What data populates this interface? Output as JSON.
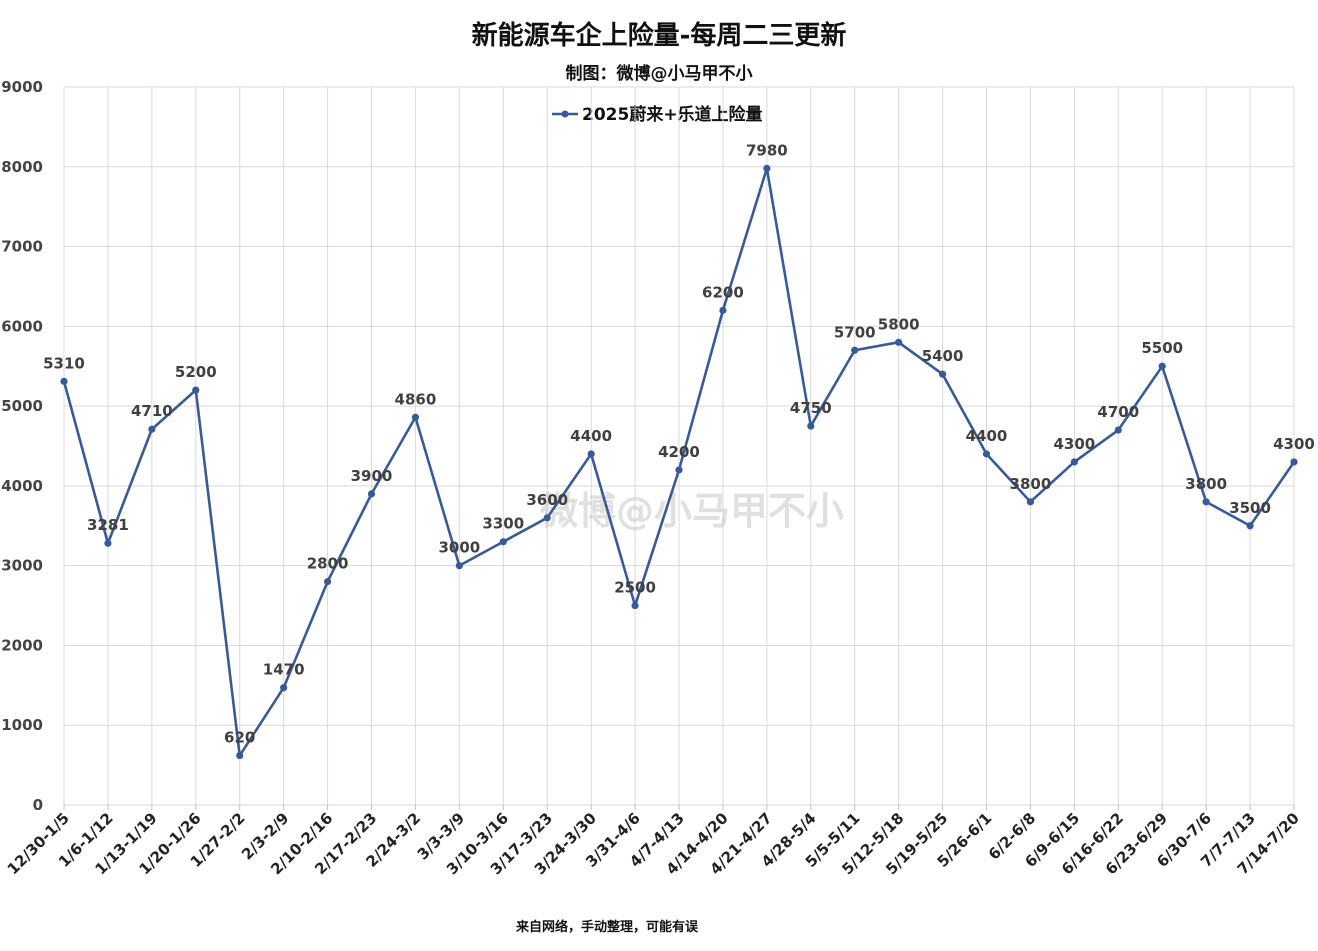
{
  "chart_data": {
    "type": "line",
    "title": "新能源车企上险量-每周二三更新",
    "subtitle": "制图：微博@小马甲不小",
    "footer": "来自网络，手动整理，可能有误",
    "watermark": "微博@小马甲不小",
    "legend_position": "top-center",
    "grid": true,
    "ylim": [
      0,
      9000
    ],
    "yticks": [
      0,
      1000,
      2000,
      3000,
      4000,
      5000,
      6000,
      7000,
      8000,
      9000
    ],
    "categories": [
      "12/30-1/5",
      "1/6-1/12",
      "1/13-1/19",
      "1/20-1/26",
      "1/27-2/2",
      "2/3-2/9",
      "2/10-2/16",
      "2/17-2/23",
      "2/24-3/2",
      "3/3-3/9",
      "3/10-3/16",
      "3/17-3/23",
      "3/24-3/30",
      "3/31-4/6",
      "4/7-4/13",
      "4/14-4/20",
      "4/21-4/27",
      "4/28-5/4",
      "5/5-5/11",
      "5/12-5/18",
      "5/19-5/25",
      "5/26-6/1",
      "6/2-6/8",
      "6/9-6/15",
      "6/16-6/22",
      "6/23-6/29",
      "6/30-7/6",
      "7/7-7/13",
      "7/14-7/20"
    ],
    "series": [
      {
        "name": "2025蔚来+乐道上险量",
        "color": "#3a5a96",
        "values": [
          5310,
          3281,
          4710,
          5200,
          620,
          1470,
          2800,
          3900,
          4860,
          3000,
          3300,
          3600,
          4400,
          2500,
          4200,
          6200,
          7980,
          4750,
          5700,
          5800,
          5400,
          4400,
          3800,
          4300,
          4700,
          5500,
          3800,
          3500,
          4300
        ]
      }
    ]
  }
}
